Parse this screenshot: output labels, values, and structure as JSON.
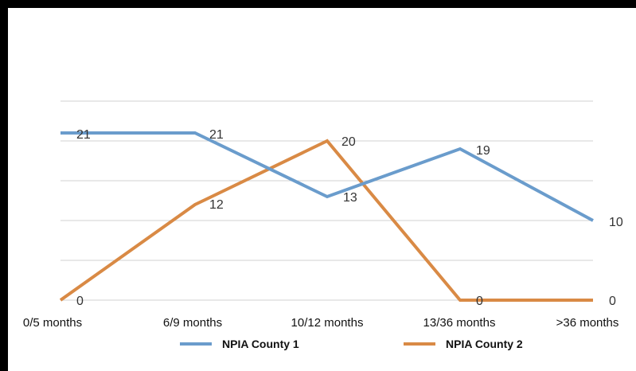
{
  "chart_data": {
    "type": "line",
    "categories": [
      "0/5 months",
      "6/9 months",
      "10/12 months",
      "13/36 months",
      ">36 months"
    ],
    "series": [
      {
        "name": "NPIA County 1",
        "values": [
          21,
          21,
          13,
          19,
          10
        ],
        "color": "#6a9ccc"
      },
      {
        "name": "NPIA County 2",
        "values": [
          0,
          12,
          20,
          0,
          0
        ],
        "color": "#d98a45"
      }
    ],
    "ylim": [
      0,
      25
    ],
    "grid": true,
    "legend": "bottom"
  }
}
